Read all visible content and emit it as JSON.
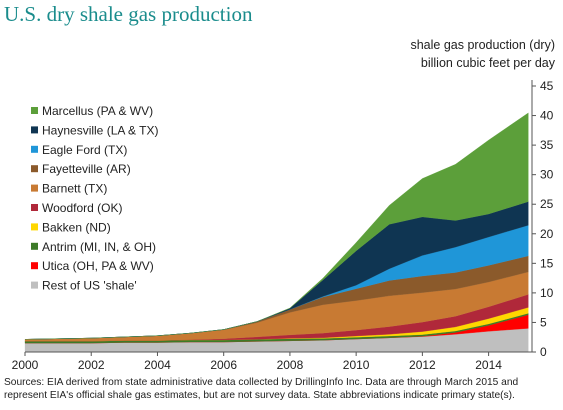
{
  "chart_data": {
    "type": "area",
    "stacked": true,
    "title": "U.S. dry shale gas production",
    "unit_line1": "shale gas production (dry)",
    "unit_line2": "billion cubic feet per day",
    "ylim": [
      0,
      45
    ],
    "yticks": [
      0,
      5,
      10,
      15,
      20,
      25,
      30,
      35,
      40,
      45
    ],
    "y_axis_position": "right",
    "xlim": [
      2000,
      2015.25
    ],
    "xticks": [
      2000,
      2002,
      2004,
      2006,
      2008,
      2010,
      2012,
      2014
    ],
    "grid": false,
    "legend_position": "left",
    "x": [
      2000,
      2001,
      2002,
      2003,
      2004,
      2005,
      2006,
      2007,
      2008,
      2009,
      2010,
      2011,
      2012,
      2013,
      2014,
      2015.2
    ],
    "series": [
      {
        "name": "Rest of US 'shale'",
        "color": "#bfbfbf",
        "values": [
          1.5,
          1.5,
          1.5,
          1.6,
          1.6,
          1.7,
          1.7,
          1.8,
          1.9,
          2.0,
          2.2,
          2.4,
          2.6,
          3.0,
          3.5,
          4.0
        ]
      },
      {
        "name": "Utica (OH, PA & WV)",
        "color": "#ff0000",
        "values": [
          0,
          0,
          0,
          0,
          0,
          0,
          0,
          0,
          0,
          0,
          0,
          0,
          0.05,
          0.3,
          1.0,
          2.3
        ]
      },
      {
        "name": "Antrim (MI, IN, & OH)",
        "color": "#3d7a28",
        "values": [
          0.35,
          0.35,
          0.35,
          0.35,
          0.35,
          0.35,
          0.35,
          0.35,
          0.35,
          0.3,
          0.3,
          0.3,
          0.3,
          0.25,
          0.25,
          0.25
        ]
      },
      {
        "name": "Bakken (ND)",
        "color": "#ffd700",
        "values": [
          0,
          0,
          0,
          0,
          0,
          0,
          0,
          0,
          0.05,
          0.1,
          0.2,
          0.3,
          0.5,
          0.7,
          0.9,
          1.0
        ]
      },
      {
        "name": "Woodford (OK)",
        "color": "#b0283a",
        "values": [
          0,
          0,
          0,
          0,
          0,
          0.05,
          0.2,
          0.4,
          0.6,
          0.8,
          1.0,
          1.3,
          1.6,
          1.8,
          2.0,
          2.2
        ]
      },
      {
        "name": "Barnett (TX)",
        "color": "#c87a33",
        "values": [
          0.3,
          0.4,
          0.5,
          0.6,
          0.8,
          1.1,
          1.5,
          2.4,
          3.8,
          4.8,
          5.0,
          5.2,
          5.0,
          4.6,
          4.2,
          3.8
        ]
      },
      {
        "name": "Fayetteville (AR)",
        "color": "#8b5a2b",
        "values": [
          0,
          0,
          0,
          0,
          0,
          0,
          0.05,
          0.2,
          0.5,
          1.3,
          2.0,
          2.6,
          2.8,
          2.8,
          2.8,
          2.7
        ]
      },
      {
        "name": "Eagle Ford (TX)",
        "color": "#1f96d8",
        "values": [
          0,
          0,
          0,
          0,
          0,
          0,
          0,
          0,
          0,
          0.1,
          0.6,
          2.0,
          3.5,
          4.3,
          4.8,
          5.2
        ]
      },
      {
        "name": "Haynesville (LA & TX)",
        "color": "#0f3552",
        "values": [
          0,
          0,
          0,
          0,
          0,
          0,
          0,
          0,
          0.2,
          2.8,
          5.8,
          7.5,
          6.5,
          4.5,
          3.9,
          4.0
        ]
      },
      {
        "name": "Marcellus (PA & WV)",
        "color": "#5c9f3a",
        "values": [
          0,
          0,
          0,
          0,
          0,
          0,
          0,
          0,
          0.05,
          0.3,
          1.4,
          3.2,
          6.5,
          9.5,
          12.5,
          15.0
        ]
      }
    ],
    "source": "Sources: EIA derived from state administrative data collected by DrillingInfo Inc. Data are through March 2015 and represent EIA's official shale gas estimates, but are not survey data. State abbreviations indicate primary state(s)."
  }
}
